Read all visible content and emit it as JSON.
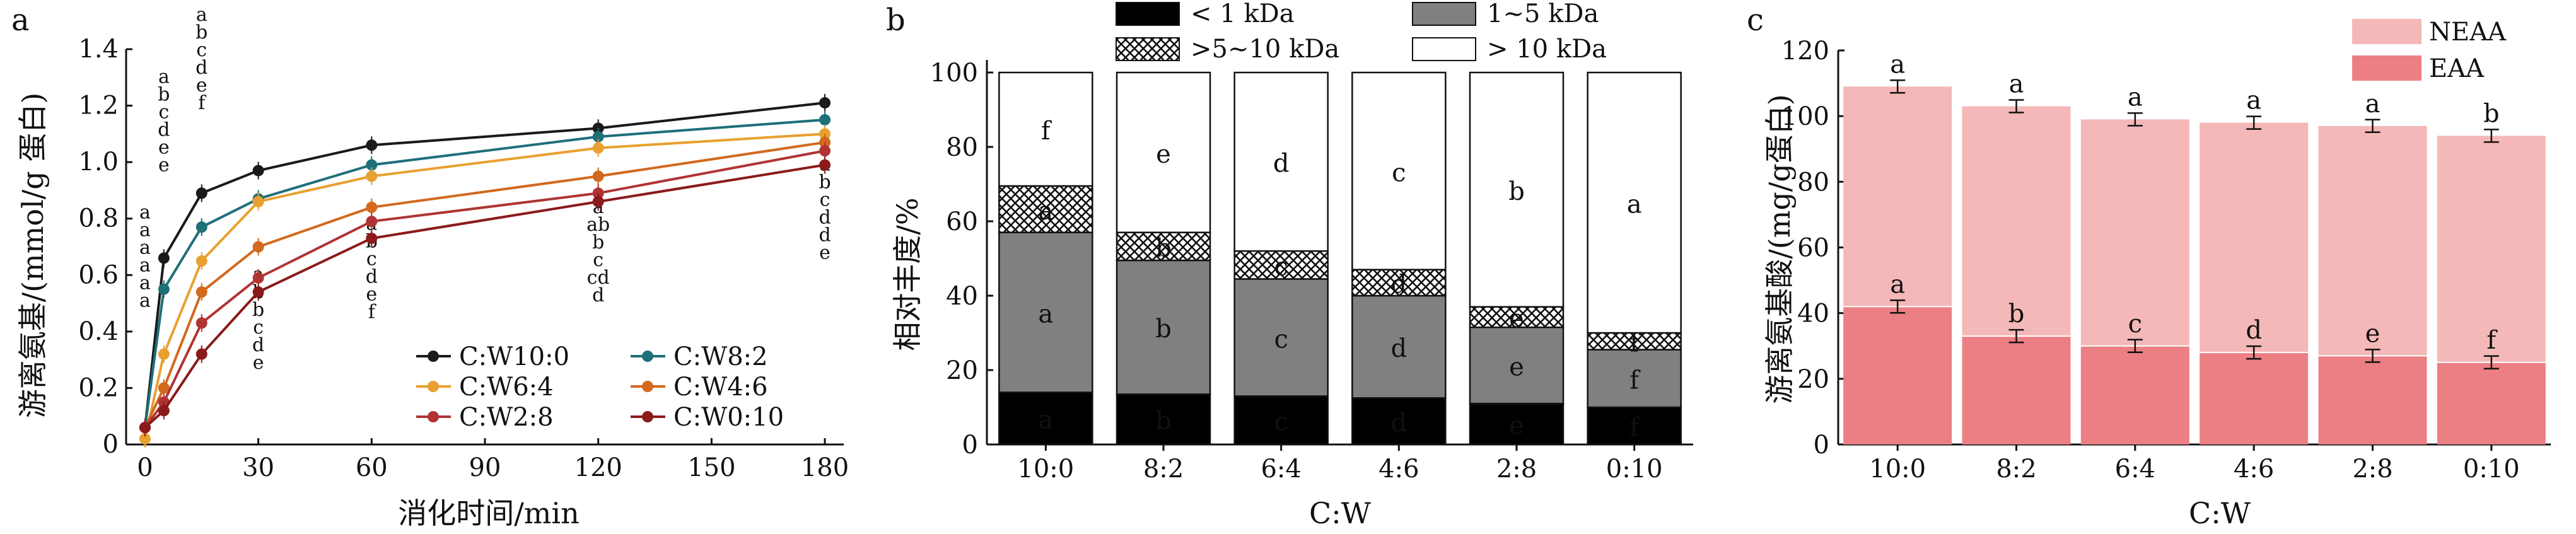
{
  "chart_data": [
    {
      "type": "line",
      "panel_label": "a",
      "xlabel": "消化时间/min",
      "ylabel": "游离氨基/(mmol/g 蛋白)",
      "xlim": [
        -5,
        185
      ],
      "ylim": [
        0,
        1.4
      ],
      "x_ticks": [
        0,
        30,
        60,
        90,
        120,
        150,
        180
      ],
      "y_ticks": [
        "0",
        "0.2",
        "0.4",
        "0.6",
        "0.8",
        "1.0",
        "1.2",
        "1.4"
      ],
      "legend_position": "bottom-right",
      "x": [
        0,
        5,
        15,
        30,
        60,
        120,
        180
      ],
      "series": [
        {
          "name": "C:W10:0",
          "color": "#1a1a1a",
          "values": [
            0.06,
            0.66,
            0.89,
            0.97,
            1.06,
            1.12,
            1.21
          ]
        },
        {
          "name": "C:W8:2",
          "color": "#1f6f79",
          "values": [
            0.06,
            0.55,
            0.77,
            0.87,
            0.99,
            1.09,
            1.15
          ]
        },
        {
          "name": "C:W6:4",
          "color": "#e8a030",
          "values": [
            0.02,
            0.32,
            0.65,
            0.86,
            0.95,
            1.05,
            1.1
          ]
        },
        {
          "name": "C:W4:6",
          "color": "#d2691e",
          "values": [
            0.06,
            0.2,
            0.54,
            0.7,
            0.84,
            0.95,
            1.07
          ]
        },
        {
          "name": "C:W2:8",
          "color": "#b03434",
          "values": [
            0.06,
            0.15,
            0.43,
            0.59,
            0.79,
            0.89,
            1.04
          ]
        },
        {
          "name": "C:W0:10",
          "color": "#8b1a1a",
          "values": [
            0.06,
            0.12,
            0.32,
            0.54,
            0.73,
            0.86,
            0.99
          ]
        }
      ],
      "annotations": [
        {
          "x": 0,
          "letters": [
            "a",
            "a",
            "a",
            "a",
            "a",
            "a"
          ],
          "top": 0.8
        },
        {
          "x": 5,
          "letters": [
            "a",
            "b",
            "c",
            "d",
            "e",
            "e"
          ],
          "top": 1.28
        },
        {
          "x": 15,
          "letters": [
            "a",
            "b",
            "c",
            "d",
            "e",
            "f"
          ],
          "top": 1.5
        },
        {
          "x": 60,
          "letters": [
            "a",
            "b",
            "c",
            "d",
            "e",
            "f"
          ],
          "top": 0.76
        },
        {
          "x": 30,
          "letters": [
            "a",
            "b",
            "b",
            "c",
            "d",
            "e"
          ],
          "top": 0.58
        },
        {
          "x": 120,
          "letters": [
            "a",
            "ab",
            "b",
            "c",
            "cd",
            "d"
          ],
          "top": 0.82
        },
        {
          "x": 180,
          "letters": [
            "a",
            "b",
            "c",
            "d",
            "d",
            "e"
          ],
          "top": 0.97
        }
      ]
    },
    {
      "type": "bar",
      "panel_label": "b",
      "xlabel": "C:W",
      "ylabel": "相对丰度/%",
      "ylim": [
        0,
        100
      ],
      "y_ticks": [
        "0",
        "20",
        "40",
        "60",
        "80",
        "100"
      ],
      "categories": [
        "10:0",
        "8:2",
        "6:4",
        "4:6",
        "2:8",
        "0:10"
      ],
      "legend_position": "top",
      "series": [
        {
          "name": "< 1 kDa",
          "fill": "solid-black",
          "values": [
            14,
            13.5,
            13,
            12.5,
            11,
            10
          ],
          "letters": [
            "a",
            "b",
            "c",
            "d",
            "e",
            "f"
          ]
        },
        {
          "name": "1~5 kDa",
          "fill": "solid-gray",
          "values": [
            43,
            36,
            31.5,
            27.5,
            20.5,
            15.5
          ],
          "letters": [
            "a",
            "b",
            "c",
            "d",
            "e",
            "f"
          ]
        },
        {
          "name": ">5~10 kDa",
          "fill": "crosshatch",
          "values": [
            12.5,
            7.5,
            7.5,
            7,
            5.5,
            4.5
          ],
          "letters": [
            "a",
            "b",
            "c",
            "d",
            "e",
            "f"
          ]
        },
        {
          "name": "> 10 kDa",
          "fill": "white",
          "values": [
            30.5,
            43,
            48,
            53,
            63,
            70
          ],
          "letters": [
            "f",
            "e",
            "d",
            "c",
            "b",
            "a"
          ]
        }
      ]
    },
    {
      "type": "bar",
      "panel_label": "c",
      "xlabel": "C:W",
      "ylabel": "游离氨基酸/(mg/g蛋白)",
      "ylim": [
        0,
        120
      ],
      "y_ticks": [
        "0",
        "20",
        "40",
        "60",
        "80",
        "100",
        "120"
      ],
      "categories": [
        "10:0",
        "8:2",
        "6:4",
        "4:6",
        "2:8",
        "0:10"
      ],
      "legend_position": "top-right",
      "series": [
        {
          "name": "NEAA",
          "color": "#f4b8b8",
          "totals": [
            109,
            103,
            99,
            98,
            97,
            94
          ],
          "letters": [
            "a",
            "a",
            "a",
            "a",
            "a",
            "b"
          ]
        },
        {
          "name": "EAA",
          "color": "#eb7f84",
          "values": [
            42,
            33,
            30,
            28,
            27,
            25
          ],
          "letters": [
            "a",
            "b",
            "c",
            "d",
            "e",
            "f"
          ]
        }
      ]
    }
  ]
}
